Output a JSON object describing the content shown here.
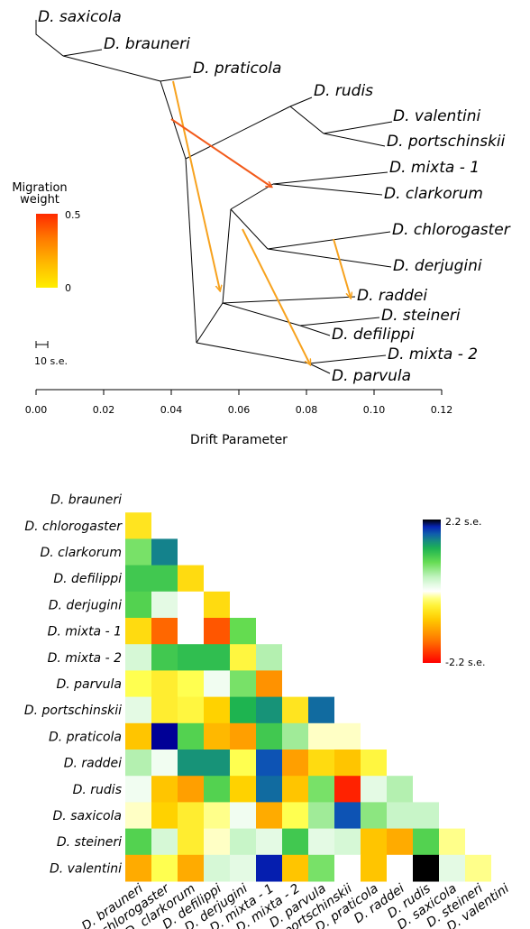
{
  "chart_data": [
    {
      "type": "tree",
      "xlabel": "Drift Parameter",
      "xlim": [
        0,
        0.12
      ],
      "xticks": [
        "0.00",
        "0.02",
        "0.04",
        "0.06",
        "0.08",
        "0.10",
        "0.12"
      ],
      "scale_bar_label": "10 s.e.",
      "legend": {
        "title": [
          "Migration",
          "weight"
        ],
        "max_label": "0.5",
        "min_label": "0",
        "colors": [
          "#ffee00",
          "#ffb800",
          "#ff7a00",
          "#ff2a00"
        ]
      },
      "migration_color": "#f7a21e",
      "migration_color_strong": "#f25a1a",
      "tips": [
        {
          "label": "D. saxicola",
          "drift": 0.0
        },
        {
          "label": "D. brauneri",
          "drift": 0.02
        },
        {
          "label": "D. praticola",
          "drift": 0.045
        },
        {
          "label": "D. rudis",
          "drift": 0.082
        },
        {
          "label": "D. valentini",
          "drift": 0.106
        },
        {
          "label": "D. portschinskii",
          "drift": 0.1
        },
        {
          "label": "D. mixta - 1",
          "drift": 0.094
        },
        {
          "label": "D. clarkorum",
          "drift": 0.093
        },
        {
          "label": "D. chlorogaster",
          "drift": 0.103
        },
        {
          "label": "D. derjugini",
          "drift": 0.104
        },
        {
          "label": "D. raddei",
          "drift": 0.092
        },
        {
          "label": "D. steineri",
          "drift": 0.1
        },
        {
          "label": "D. defilippi",
          "drift": 0.087
        },
        {
          "label": "D. mixta - 2",
          "drift": 0.098
        },
        {
          "label": "D. parvula",
          "drift": 0.085
        }
      ]
    },
    {
      "type": "heatmap",
      "labels": [
        "D. brauneri",
        "D. chlorogaster",
        "D. clarkorum",
        "D. defilippi",
        "D. derjugini",
        "D. mixta - 1",
        "D. mixta - 2",
        "D. parvula",
        "D. portschinskii",
        "D. praticola",
        "D. raddei",
        "D. rudis",
        "D. saxicola",
        "D. steineri",
        "D. valentini"
      ],
      "colorbar": {
        "max_label": "2.2 s.e.",
        "min_label": "-2.2 s.e.",
        "range": [
          -2.2,
          2.2
        ]
      },
      "residuals": [
        [
          0
        ],
        [
          -0.6,
          0
        ],
        [
          0.8,
          1.6,
          0
        ],
        [
          1.1,
          1.1,
          -0.7,
          0
        ],
        [
          1.0,
          0.2,
          0,
          -0.7,
          0
        ],
        [
          -0.7,
          -1.6,
          0,
          -1.7,
          0.9,
          0
        ],
        [
          0.3,
          1.1,
          1.2,
          1.2,
          -0.4,
          0.5,
          0
        ],
        [
          -0.3,
          -0.5,
          -0.3,
          0.1,
          0.8,
          -1.3,
          0,
          0
        ],
        [
          0.2,
          -0.5,
          -0.4,
          -0.8,
          1.3,
          1.5,
          -0.6,
          1.7,
          0
        ],
        [
          -0.9,
          2.1,
          1.0,
          -1.0,
          -1.2,
          1.1,
          0.6,
          -0.1,
          -0.1,
          0
        ],
        [
          0.5,
          0.1,
          1.5,
          1.5,
          -0.3,
          1.8,
          -1.2,
          -0.7,
          -0.9,
          -0.4,
          0
        ],
        [
          0.1,
          -0.9,
          -1.2,
          1.0,
          -0.8,
          1.7,
          -0.9,
          0.8,
          -2.0,
          0.2,
          0.5,
          0
        ],
        [
          -0.1,
          -0.8,
          -0.5,
          -0.2,
          0.1,
          -1.1,
          -0.3,
          0.6,
          1.8,
          0.7,
          0.4,
          0.4,
          0
        ],
        [
          1.0,
          0.3,
          -0.5,
          -0.1,
          0.4,
          0.2,
          1.1,
          0.2,
          0.3,
          -0.9,
          -1.1,
          1.0,
          -0.2,
          0
        ],
        [
          -1.1,
          -0.3,
          -1.1,
          0.3,
          0.2,
          2.0,
          -0.9,
          0.8,
          0,
          -0.9,
          0,
          2.2,
          0.2,
          -0.2,
          0
        ]
      ]
    }
  ]
}
